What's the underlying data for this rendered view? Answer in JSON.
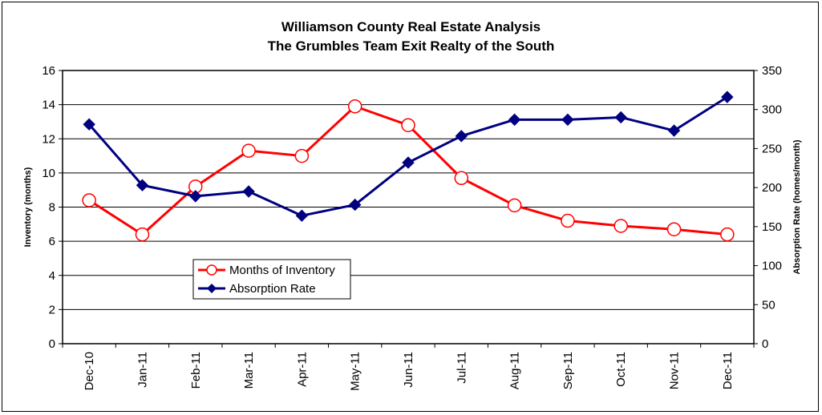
{
  "chart_data": {
    "type": "line",
    "title": "Williamson County Real Estate Analysis",
    "subtitle": "The Grumbles Team Exit Realty of the South",
    "categories": [
      "Dec-10",
      "Jan-11",
      "Feb-11",
      "Mar-11",
      "Apr-11",
      "May-11",
      "Jun-11",
      "Jul-11",
      "Aug-11",
      "Sep-11",
      "Oct-11",
      "Nov-11",
      "Dec-11"
    ],
    "ylabel_left": "Inventory (months)",
    "ylabel_right": "Absorption Rate (homes/month)",
    "ylim_left": [
      0,
      16
    ],
    "ylim_right": [
      0,
      350
    ],
    "yticks_left": [
      0,
      2,
      4,
      6,
      8,
      10,
      12,
      14,
      16
    ],
    "yticks_right": [
      0,
      50,
      100,
      150,
      200,
      250,
      300,
      350
    ],
    "grid": "horizontal",
    "legend_position": "lower-left",
    "series": [
      {
        "name": "Months of Inventory",
        "axis": "left",
        "color": "#ff0000",
        "marker": "open-circle",
        "values": [
          8.4,
          6.4,
          9.2,
          11.3,
          11.0,
          13.9,
          12.8,
          9.7,
          8.1,
          7.2,
          6.9,
          6.7,
          6.4
        ]
      },
      {
        "name": "Absorption Rate",
        "axis": "right",
        "color": "#000080",
        "marker": "filled-diamond",
        "values": [
          281,
          203,
          189,
          195,
          164,
          178,
          232,
          266,
          287,
          287,
          290,
          273,
          316
        ]
      }
    ]
  }
}
